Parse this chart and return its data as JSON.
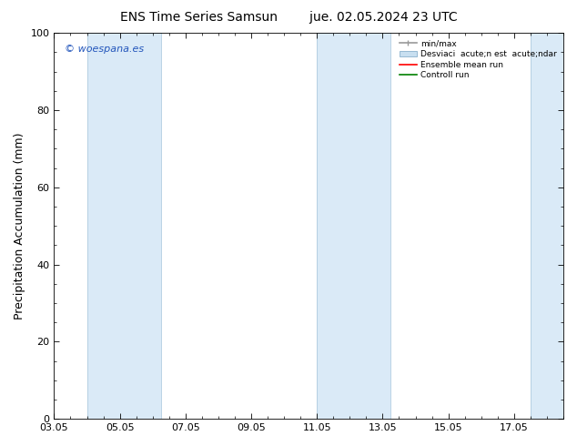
{
  "title_left": "ENS Time Series Samsun",
  "title_right": "jue. 02.05.2024 23 UTC",
  "ylabel": "Precipitation Accumulation (mm)",
  "ylim": [
    0,
    100
  ],
  "x_start_day": 0,
  "x_end_day": 15.5,
  "x_ticks": [
    0,
    2,
    4,
    6,
    8,
    10,
    12,
    14
  ],
  "x_tick_labels": [
    "03.05",
    "05.05",
    "07.05",
    "09.05",
    "11.05",
    "13.05",
    "15.05",
    "17.05"
  ],
  "watermark": "© woespana.es",
  "shaded_bands": [
    {
      "xmin": 1.0,
      "xmax": 3.25
    },
    {
      "xmin": 8.0,
      "xmax": 10.25
    },
    {
      "xmin": 14.5,
      "xmax": 15.6
    }
  ],
  "band_color": "#daeaf7",
  "band_edge_color": "#b0cce0",
  "legend_label_minmax": "min/max",
  "legend_label_std": "Desviaci  acute;n est  acute;ndar",
  "legend_label_ens": "Ensemble mean run",
  "legend_label_ctrl": "Controll run",
  "bg_color": "#ffffff",
  "title_fontsize": 10,
  "tick_fontsize": 8,
  "ylabel_fontsize": 9
}
